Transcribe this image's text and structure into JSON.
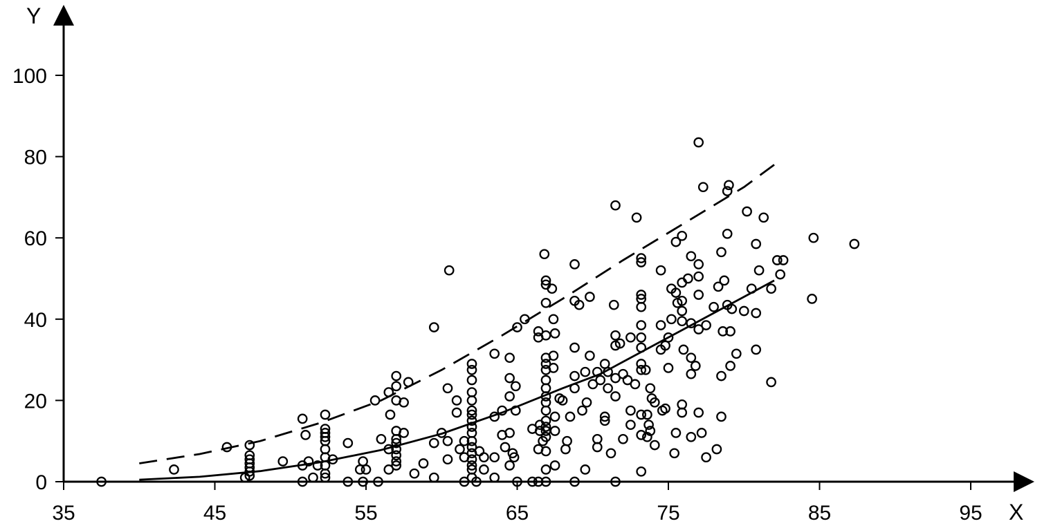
{
  "chart_data": {
    "type": "scatter",
    "title": "",
    "xlabel": "X",
    "ylabel": "Y",
    "xlim": [
      35,
      98
    ],
    "ylim": [
      0,
      115
    ],
    "x_ticks": [
      35,
      45,
      55,
      65,
      75,
      85,
      95
    ],
    "y_ticks": [
      0,
      20,
      40,
      60,
      80,
      100
    ],
    "grid": false,
    "legend": "none",
    "marker_color": "#000000",
    "series": [
      {
        "kind": "points",
        "points": [
          [
            37.5,
            0
          ],
          [
            42.3,
            3
          ],
          [
            45.8,
            8.5
          ],
          [
            47,
            1
          ],
          [
            47.3,
            1.5
          ],
          [
            47.3,
            2.5
          ],
          [
            47.3,
            3.5
          ],
          [
            47.3,
            4.5
          ],
          [
            47.3,
            5.5
          ],
          [
            47.3,
            6.5
          ],
          [
            47.3,
            9
          ],
          [
            49.5,
            5
          ],
          [
            50.8,
            15.5
          ],
          [
            51,
            11.5
          ],
          [
            50.8,
            4
          ],
          [
            51.2,
            5
          ],
          [
            51.8,
            4
          ],
          [
            51.5,
            1
          ],
          [
            50.8,
            0
          ],
          [
            52.3,
            16.5
          ],
          [
            52.3,
            13
          ],
          [
            52.3,
            12
          ],
          [
            52.3,
            11
          ],
          [
            52.3,
            10
          ],
          [
            52.3,
            8
          ],
          [
            52.3,
            6
          ],
          [
            52.3,
            4
          ],
          [
            52.3,
            2
          ],
          [
            52.3,
            1
          ],
          [
            52.8,
            5.5
          ],
          [
            53.8,
            9.5
          ],
          [
            53.8,
            0
          ],
          [
            54.6,
            3
          ],
          [
            55,
            3
          ],
          [
            54.8,
            5
          ],
          [
            54.8,
            0
          ],
          [
            55.6,
            20
          ],
          [
            55.8,
            0
          ],
          [
            56,
            10.5
          ],
          [
            56.6,
            16.5
          ],
          [
            56.5,
            22
          ],
          [
            56.5,
            8
          ],
          [
            56.5,
            3
          ],
          [
            57,
            26
          ],
          [
            57,
            23.5
          ],
          [
            57,
            20
          ],
          [
            57,
            12.5
          ],
          [
            57,
            10.5
          ],
          [
            57,
            9.5
          ],
          [
            57,
            8
          ],
          [
            57,
            6.5
          ],
          [
            57,
            5
          ],
          [
            57,
            4
          ],
          [
            57.5,
            19.5
          ],
          [
            57.5,
            12
          ],
          [
            57.8,
            24.5
          ],
          [
            58.2,
            2
          ],
          [
            58.8,
            4.5
          ],
          [
            59.5,
            1
          ],
          [
            59.5,
            9.5
          ],
          [
            59.5,
            38
          ],
          [
            60,
            12
          ],
          [
            60.4,
            23
          ],
          [
            60.4,
            10
          ],
          [
            60.4,
            5.5
          ],
          [
            60.5,
            52
          ],
          [
            61,
            17
          ],
          [
            61,
            20
          ],
          [
            61.2,
            8
          ],
          [
            61.5,
            10
          ],
          [
            61.5,
            6
          ],
          [
            61.5,
            0
          ],
          [
            62,
            29
          ],
          [
            62,
            27.5
          ],
          [
            62,
            25
          ],
          [
            62,
            22
          ],
          [
            62,
            20
          ],
          [
            62,
            17.5
          ],
          [
            62,
            16.5
          ],
          [
            62,
            15
          ],
          [
            62,
            13.5
          ],
          [
            62,
            12
          ],
          [
            62,
            10
          ],
          [
            62,
            8.5
          ],
          [
            62,
            7
          ],
          [
            62,
            5.5
          ],
          [
            62,
            4
          ],
          [
            62,
            3
          ],
          [
            62,
            1
          ],
          [
            62.3,
            0
          ],
          [
            62.5,
            7.5
          ],
          [
            62.8,
            6
          ],
          [
            62.8,
            3
          ],
          [
            63.5,
            16
          ],
          [
            63.5,
            31.5
          ],
          [
            63.5,
            6
          ],
          [
            63.5,
            1
          ],
          [
            64,
            17.5
          ],
          [
            64,
            11.5
          ],
          [
            64.2,
            8.5
          ],
          [
            64.5,
            21
          ],
          [
            64.5,
            25.5
          ],
          [
            64.5,
            30.5
          ],
          [
            64.5,
            12
          ],
          [
            64.5,
            4
          ],
          [
            64.7,
            7
          ],
          [
            64.8,
            6
          ],
          [
            64.9,
            17.5
          ],
          [
            64.9,
            23.5
          ],
          [
            65,
            38
          ],
          [
            65,
            0
          ],
          [
            65.5,
            40
          ],
          [
            66,
            13
          ],
          [
            66,
            0
          ],
          [
            66.4,
            37
          ],
          [
            66.4,
            35.5
          ],
          [
            66.4,
            8
          ],
          [
            66.4,
            0
          ],
          [
            66.5,
            12.5
          ],
          [
            66.5,
            14
          ],
          [
            66.7,
            10
          ],
          [
            66.8,
            56
          ],
          [
            66.9,
            49.5
          ],
          [
            66.9,
            48.5
          ],
          [
            66.9,
            44
          ],
          [
            66.9,
            36
          ],
          [
            66.9,
            30.5
          ],
          [
            66.9,
            29
          ],
          [
            66.9,
            27.5
          ],
          [
            66.9,
            25
          ],
          [
            66.9,
            23
          ],
          [
            66.9,
            21
          ],
          [
            66.9,
            19.5
          ],
          [
            66.9,
            17.5
          ],
          [
            66.9,
            15
          ],
          [
            66.9,
            13.5
          ],
          [
            66.9,
            12.5
          ],
          [
            66.9,
            11
          ],
          [
            66.9,
            7.5
          ],
          [
            66.9,
            3
          ],
          [
            66.9,
            0
          ],
          [
            67.3,
            47.5
          ],
          [
            67.4,
            40
          ],
          [
            67.4,
            31
          ],
          [
            67.4,
            28
          ],
          [
            67.5,
            16
          ],
          [
            67.5,
            12.5
          ],
          [
            67.5,
            4
          ],
          [
            67.5,
            36.5
          ],
          [
            67.8,
            20.5
          ],
          [
            68,
            20
          ],
          [
            68.2,
            8
          ],
          [
            68.3,
            10
          ],
          [
            68.8,
            53.5
          ],
          [
            68.8,
            44.5
          ],
          [
            68.8,
            33
          ],
          [
            68.8,
            26
          ],
          [
            68.8,
            23
          ],
          [
            68.8,
            0
          ],
          [
            68.5,
            16
          ],
          [
            69.1,
            43.5
          ],
          [
            69.3,
            17.5
          ],
          [
            69.5,
            27
          ],
          [
            69.5,
            3
          ],
          [
            69.6,
            19.5
          ],
          [
            69.8,
            45.5
          ],
          [
            69.8,
            31
          ],
          [
            70,
            24
          ],
          [
            70.3,
            10.5
          ],
          [
            70.3,
            8.5
          ],
          [
            70.3,
            27
          ],
          [
            70.5,
            25
          ],
          [
            70.8,
            15
          ],
          [
            70.8,
            16
          ],
          [
            70.8,
            29
          ],
          [
            71,
            27
          ],
          [
            71,
            23
          ],
          [
            71.2,
            7
          ],
          [
            71.4,
            43.5
          ],
          [
            71.5,
            68
          ],
          [
            71.5,
            36
          ],
          [
            71.5,
            33.5
          ],
          [
            71.5,
            25.5
          ],
          [
            71.5,
            21
          ],
          [
            71.5,
            0
          ],
          [
            71.8,
            34
          ],
          [
            72,
            10.5
          ],
          [
            72,
            26.5
          ],
          [
            72.5,
            35.5
          ],
          [
            72.3,
            25
          ],
          [
            72.5,
            17.5
          ],
          [
            72.5,
            14
          ],
          [
            72.8,
            24
          ],
          [
            72.9,
            65
          ],
          [
            73.2,
            55
          ],
          [
            73.2,
            54
          ],
          [
            73.2,
            46
          ],
          [
            73.2,
            45
          ],
          [
            73.2,
            43
          ],
          [
            73.2,
            38.5
          ],
          [
            73.2,
            35.5
          ],
          [
            73.2,
            33
          ],
          [
            73.2,
            29
          ],
          [
            73.2,
            27.5
          ],
          [
            73.2,
            16.5
          ],
          [
            73.2,
            11.5
          ],
          [
            73.2,
            2.5
          ],
          [
            73.5,
            27.5
          ],
          [
            73.6,
            11
          ],
          [
            73.6,
            16.5
          ],
          [
            73.7,
            14
          ],
          [
            73.8,
            23
          ],
          [
            73.8,
            12.5
          ],
          [
            73.9,
            20.5
          ],
          [
            74.1,
            9
          ],
          [
            74.1,
            19.5
          ],
          [
            74.5,
            52
          ],
          [
            74.5,
            38.5
          ],
          [
            74.5,
            32.5
          ],
          [
            74.8,
            33.5
          ],
          [
            74.6,
            17.5
          ],
          [
            74.8,
            18
          ],
          [
            75,
            28
          ],
          [
            75,
            35.5
          ],
          [
            75.2,
            40
          ],
          [
            75.2,
            47.5
          ],
          [
            75.4,
            7
          ],
          [
            75.5,
            59
          ],
          [
            75.5,
            46.5
          ],
          [
            75.6,
            44
          ],
          [
            75.5,
            12
          ],
          [
            75.9,
            60.5
          ],
          [
            75.9,
            49
          ],
          [
            75.9,
            44.5
          ],
          [
            75.9,
            42
          ],
          [
            75.9,
            39.5
          ],
          [
            75.9,
            17
          ],
          [
            75.9,
            19
          ],
          [
            76,
            32.5
          ],
          [
            76.3,
            50
          ],
          [
            76.5,
            55.5
          ],
          [
            76.5,
            39
          ],
          [
            76.5,
            30.5
          ],
          [
            76.5,
            26.5
          ],
          [
            76.8,
            28.5
          ],
          [
            76.5,
            11
          ],
          [
            77.3,
            72.5
          ],
          [
            77,
            83.5
          ],
          [
            77,
            53.5
          ],
          [
            77,
            46
          ],
          [
            77,
            37.5
          ],
          [
            77,
            50.5
          ],
          [
            77,
            17
          ],
          [
            77.2,
            12
          ],
          [
            77.5,
            6
          ],
          [
            77.5,
            38.5
          ],
          [
            78,
            43
          ],
          [
            78.2,
            8
          ],
          [
            78.3,
            48
          ],
          [
            78.5,
            56.5
          ],
          [
            78.5,
            26
          ],
          [
            78.5,
            16
          ],
          [
            78.6,
            37
          ],
          [
            78.7,
            49.5
          ],
          [
            78.9,
            61
          ],
          [
            79,
            73
          ],
          [
            78.9,
            71.5
          ],
          [
            78.9,
            43.5
          ],
          [
            79.2,
            42.5
          ],
          [
            79.1,
            37
          ],
          [
            79.1,
            28.5
          ],
          [
            79.5,
            31.5
          ],
          [
            80,
            42
          ],
          [
            80.2,
            66.5
          ],
          [
            80.5,
            47.5
          ],
          [
            80.8,
            32.5
          ],
          [
            80.8,
            58.5
          ],
          [
            80.8,
            41.5
          ],
          [
            81,
            52
          ],
          [
            81.3,
            65
          ],
          [
            81.8,
            24.5
          ],
          [
            81.8,
            47.5
          ],
          [
            82.2,
            54.5
          ],
          [
            82.4,
            51
          ],
          [
            82.6,
            54.5
          ],
          [
            84.5,
            45
          ],
          [
            84.6,
            60
          ],
          [
            87.3,
            58.5
          ]
        ]
      },
      {
        "kind": "solid-curve",
        "x": [
          40,
          44,
          48,
          52,
          56,
          60,
          64,
          68,
          70.5,
          72,
          74,
          76,
          78,
          80,
          82
        ],
        "y": [
          0.5,
          1.2,
          2.6,
          4.8,
          7.8,
          11.8,
          17,
          23,
          26.5,
          29.5,
          33.5,
          37.5,
          41.5,
          45.5,
          49.5
        ]
      },
      {
        "kind": "dashed-curve",
        "x": [
          40,
          44,
          48,
          52,
          56,
          60,
          64,
          68,
          72,
          76,
          80,
          82
        ],
        "y": [
          4.5,
          6.8,
          10,
          14.5,
          20,
          27.5,
          36,
          45,
          54.5,
          63.5,
          72.5,
          78
        ]
      }
    ]
  }
}
